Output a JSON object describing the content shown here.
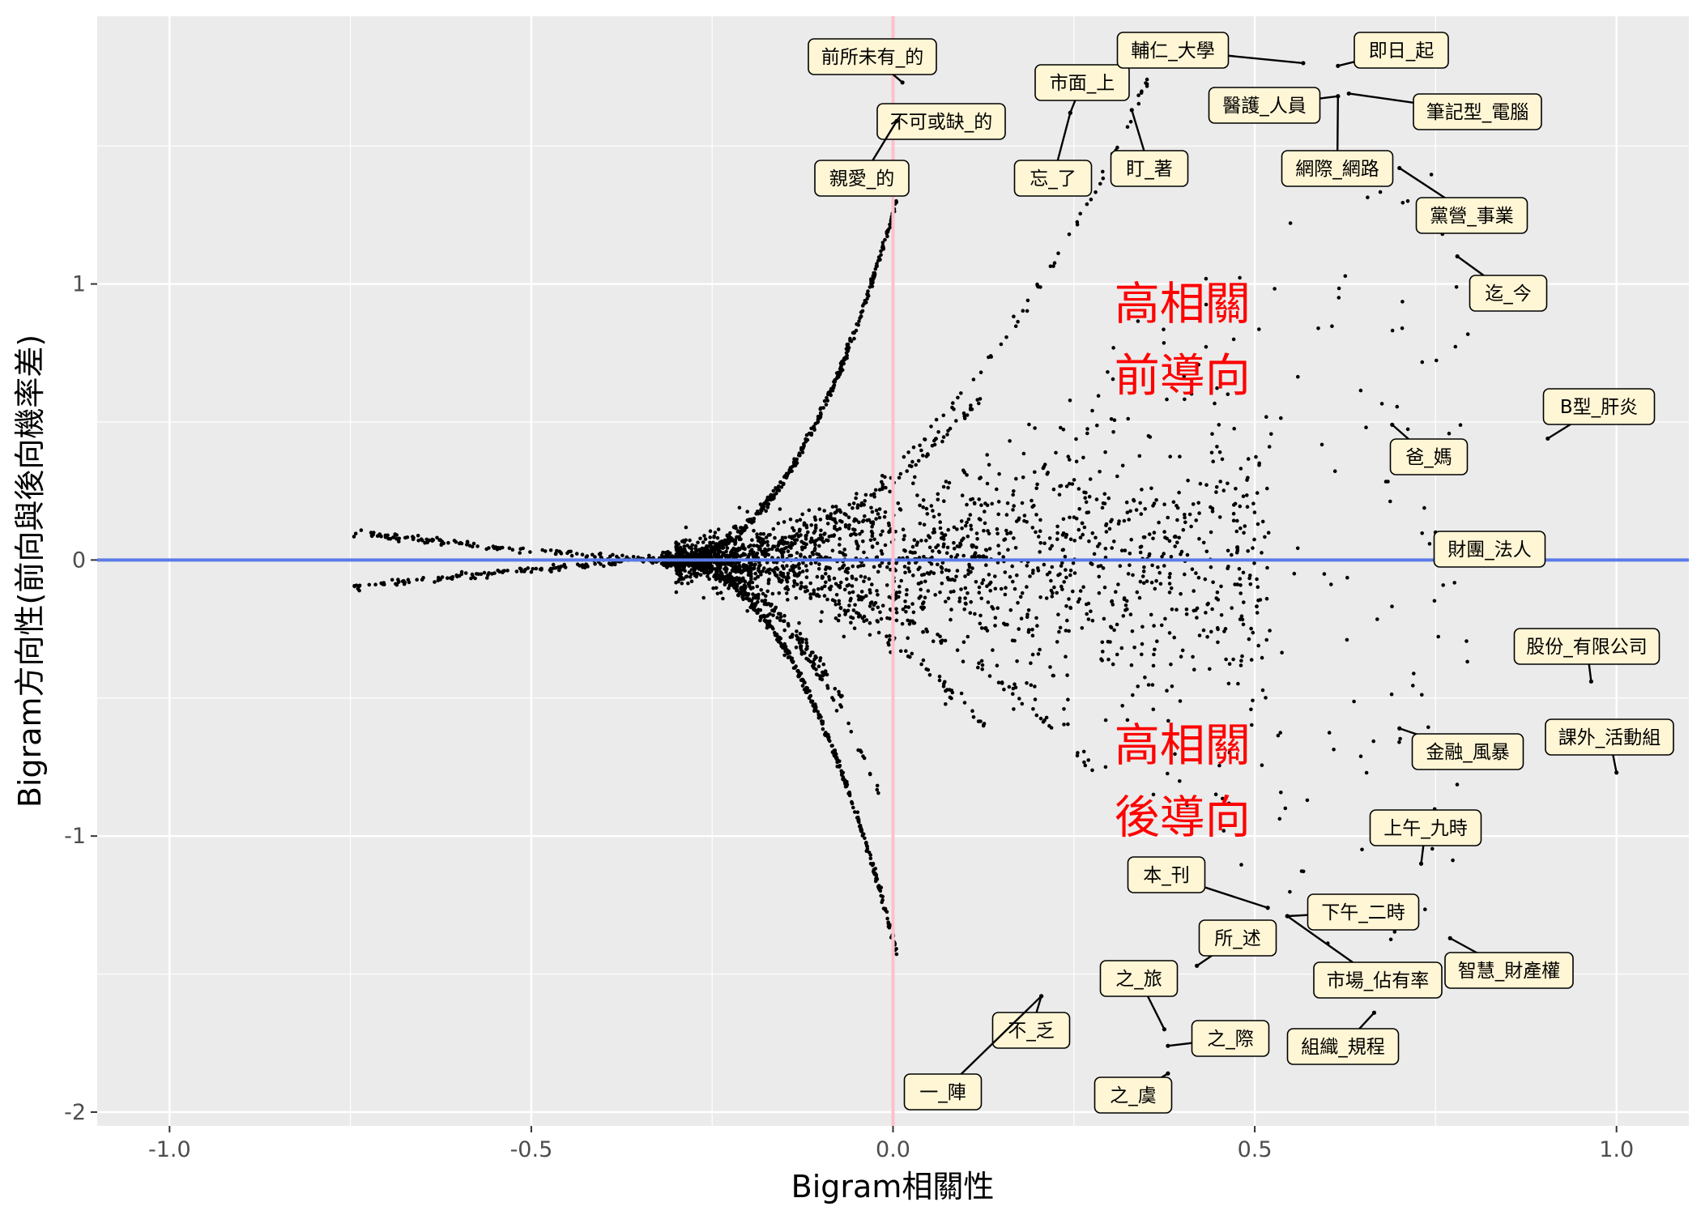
{
  "chart_data": {
    "type": "scatter",
    "title": "",
    "xlabel": "Bigram相關性",
    "ylabel": "Bigram方向性(前向與後向機率差)",
    "xlim": [
      -1.1,
      1.1
    ],
    "ylim": [
      -2.05,
      1.97
    ],
    "xticks": [
      {
        "v": -1.0,
        "label": "-1.0"
      },
      {
        "v": -0.5,
        "label": "-0.5"
      },
      {
        "v": 0.0,
        "label": "0.0"
      },
      {
        "v": 0.5,
        "label": "0.5"
      },
      {
        "v": 1.0,
        "label": "1.0"
      }
    ],
    "yticks": [
      {
        "v": -2,
        "label": "-2"
      },
      {
        "v": -1,
        "label": "-1"
      },
      {
        "v": 0,
        "label": "0"
      },
      {
        "v": 1,
        "label": "1"
      }
    ],
    "grid": true,
    "reference_lines": [
      {
        "orientation": "horizontal",
        "value": 0,
        "color": "#5b7be6"
      },
      {
        "orientation": "vertical",
        "value": 0,
        "color": "#ffc0cb"
      }
    ],
    "annotations": [
      {
        "text": "高相關",
        "x": 0.4,
        "y": 0.93
      },
      {
        "text": "前導向",
        "x": 0.4,
        "y": 0.67
      },
      {
        "text": "高相關",
        "x": 0.4,
        "y": -0.67
      },
      {
        "text": "後導向",
        "x": 0.4,
        "y": -0.93
      }
    ],
    "labeled_points": [
      {
        "label": "前所未有_的",
        "x": 0.013,
        "y": 1.73
      },
      {
        "label": "不可或缺_的",
        "x": 0.007,
        "y": 1.6
      },
      {
        "label": "親愛_的",
        "x": 0.005,
        "y": 1.59
      },
      {
        "label": "市面_上",
        "x": 0.245,
        "y": 1.62
      },
      {
        "label": "忘_了",
        "x": 0.245,
        "y": 1.62
      },
      {
        "label": "盯_著",
        "x": 0.33,
        "y": 1.63
      },
      {
        "label": "輔仁_大學",
        "x": 0.567,
        "y": 1.8
      },
      {
        "label": "即日_起",
        "x": 0.615,
        "y": 1.79
      },
      {
        "label": "醫護_人員",
        "x": 0.615,
        "y": 1.68
      },
      {
        "label": "網際_網路",
        "x": 0.615,
        "y": 1.68
      },
      {
        "label": "筆記型_電腦",
        "x": 0.63,
        "y": 1.69
      },
      {
        "label": "黨營_事業",
        "x": 0.7,
        "y": 1.42
      },
      {
        "label": "迄_今",
        "x": 0.78,
        "y": 1.1
      },
      {
        "label": "B型_肝炎",
        "x": 0.905,
        "y": 0.44
      },
      {
        "label": "爸_媽",
        "x": 0.69,
        "y": 0.49
      },
      {
        "label": "財團_法人",
        "x": 0.75,
        "y": 0.1
      },
      {
        "label": "股份_有限公司",
        "x": 0.965,
        "y": -0.44
      },
      {
        "label": "課外_活動組",
        "x": 1.0,
        "y": -0.77
      },
      {
        "label": "金融_風暴",
        "x": 0.7,
        "y": -0.61
      },
      {
        "label": "上午_九時",
        "x": 0.73,
        "y": -1.1
      },
      {
        "label": "本_刊",
        "x": 0.518,
        "y": -1.26
      },
      {
        "label": "下午_二時",
        "x": 0.545,
        "y": -1.29
      },
      {
        "label": "市場_佔有率",
        "x": 0.545,
        "y": -1.29
      },
      {
        "label": "所_述",
        "x": 0.42,
        "y": -1.47
      },
      {
        "label": "智慧_財產權",
        "x": 0.77,
        "y": -1.37
      },
      {
        "label": "之_旅",
        "x": 0.375,
        "y": -1.7
      },
      {
        "label": "之_際",
        "x": 0.38,
        "y": -1.76
      },
      {
        "label": "組織_規程",
        "x": 0.665,
        "y": -1.64
      },
      {
        "label": "不_乏",
        "x": 0.205,
        "y": -1.58
      },
      {
        "label": "一_陣",
        "x": 0.205,
        "y": -1.58
      },
      {
        "label": "之_虞",
        "x": 0.38,
        "y": -1.86
      }
    ],
    "point_count_approx": 4000,
    "point_color": "#000000"
  }
}
